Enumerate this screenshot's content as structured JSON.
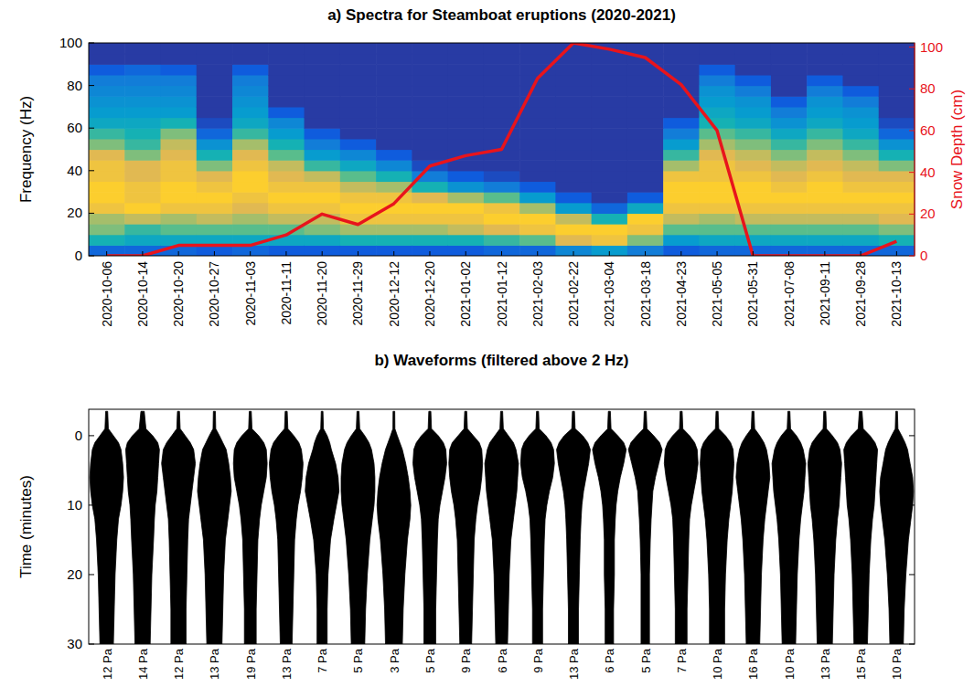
{
  "chart_data": [
    {
      "type": "heatmap",
      "title": "a) Spectra for Steamboat eruptions (2020-2021)",
      "categories": [
        "2020-10-06",
        "2020-10-14",
        "2020-10-20",
        "2020-10-27",
        "2020-11-03",
        "2020-11-11",
        "2020-11-20",
        "2020-11-29",
        "2020-12-12",
        "2020-12-20",
        "2021-01-02",
        "2021-01-12",
        "2021-02-03",
        "2021-02-22",
        "2021-03-04",
        "2021-03-18",
        "2021-04-23",
        "2021-05-05",
        "2021-05-31",
        "2021-07-08",
        "2021-09-11",
        "2021-09-28",
        "2021-10-13"
      ],
      "y_label": "Frequency (Hz)",
      "ylim": [
        0,
        100
      ],
      "yticks": [
        0,
        20,
        40,
        60,
        80,
        100
      ],
      "y_bins": [
        0,
        5,
        10,
        15,
        20,
        25,
        30,
        35,
        40,
        45,
        50,
        55,
        60,
        65,
        70,
        75,
        80,
        85,
        90,
        95,
        100
      ],
      "zlim": [
        0,
        1
      ],
      "cells": [
        [
          0.2,
          0.55,
          0.7,
          0.75,
          0.9,
          0.95,
          0.95,
          0.9,
          0.9,
          0.85,
          0.7,
          0.6,
          0.5,
          0.45,
          0.4,
          0.35,
          0.3,
          0.15,
          0.05,
          0.05
        ],
        [
          0.2,
          0.5,
          0.6,
          0.8,
          0.95,
          0.9,
          0.9,
          0.85,
          0.85,
          0.7,
          0.6,
          0.55,
          0.5,
          0.45,
          0.4,
          0.35,
          0.3,
          0.2,
          0.05,
          0.05
        ],
        [
          0.2,
          0.5,
          0.65,
          0.75,
          0.9,
          0.95,
          0.95,
          0.9,
          0.9,
          0.85,
          0.8,
          0.7,
          0.55,
          0.45,
          0.4,
          0.35,
          0.3,
          0.15,
          0.05,
          0.05
        ],
        [
          0.15,
          0.5,
          0.65,
          0.8,
          0.9,
          0.95,
          0.9,
          0.85,
          0.7,
          0.55,
          0.4,
          0.2,
          0.1,
          0.05,
          0.05,
          0.05,
          0.05,
          0.05,
          0.05,
          0.05
        ],
        [
          0.2,
          0.5,
          0.65,
          0.75,
          0.85,
          0.9,
          0.95,
          0.95,
          0.9,
          0.85,
          0.75,
          0.6,
          0.5,
          0.45,
          0.4,
          0.35,
          0.3,
          0.15,
          0.05,
          0.05
        ],
        [
          0.15,
          0.5,
          0.65,
          0.8,
          0.9,
          0.95,
          0.9,
          0.85,
          0.8,
          0.65,
          0.55,
          0.45,
          0.35,
          0.15,
          0.05,
          0.05,
          0.05,
          0.05,
          0.05,
          0.05
        ],
        [
          0.15,
          0.5,
          0.7,
          0.8,
          0.9,
          0.95,
          0.9,
          0.8,
          0.6,
          0.45,
          0.3,
          0.15,
          0.05,
          0.05,
          0.05,
          0.05,
          0.05,
          0.05,
          0.05,
          0.05
        ],
        [
          0.15,
          0.55,
          0.75,
          0.9,
          0.95,
          0.9,
          0.8,
          0.65,
          0.5,
          0.35,
          0.15,
          0.05,
          0.05,
          0.05,
          0.05,
          0.05,
          0.05,
          0.05,
          0.05,
          0.05
        ],
        [
          0.15,
          0.55,
          0.75,
          0.9,
          0.95,
          0.9,
          0.75,
          0.55,
          0.35,
          0.15,
          0.05,
          0.05,
          0.05,
          0.05,
          0.05,
          0.05,
          0.05,
          0.05,
          0.05,
          0.05
        ],
        [
          0.15,
          0.55,
          0.75,
          0.9,
          0.95,
          0.85,
          0.55,
          0.3,
          0.1,
          0.05,
          0.05,
          0.05,
          0.05,
          0.05,
          0.05,
          0.05,
          0.05,
          0.05,
          0.05,
          0.05
        ],
        [
          0.15,
          0.55,
          0.8,
          0.9,
          0.95,
          0.75,
          0.4,
          0.15,
          0.05,
          0.05,
          0.05,
          0.05,
          0.05,
          0.05,
          0.05,
          0.05,
          0.05,
          0.05,
          0.05,
          0.05
        ],
        [
          0.2,
          0.6,
          0.85,
          0.95,
          0.9,
          0.65,
          0.3,
          0.1,
          0.05,
          0.05,
          0.05,
          0.05,
          0.05,
          0.05,
          0.05,
          0.05,
          0.05,
          0.05,
          0.05,
          0.05
        ],
        [
          0.2,
          0.65,
          0.9,
          0.95,
          0.75,
          0.45,
          0.15,
          0.05,
          0.05,
          0.05,
          0.05,
          0.05,
          0.05,
          0.05,
          0.05,
          0.05,
          0.05,
          0.05,
          0.05,
          0.05
        ],
        [
          0.35,
          0.85,
          0.95,
          0.8,
          0.45,
          0.15,
          0.05,
          0.05,
          0.05,
          0.05,
          0.05,
          0.05,
          0.05,
          0.05,
          0.05,
          0.05,
          0.05,
          0.05,
          0.05,
          0.05
        ],
        [
          0.45,
          0.9,
          0.95,
          0.55,
          0.2,
          0.05,
          0.05,
          0.05,
          0.05,
          0.05,
          0.05,
          0.05,
          0.05,
          0.05,
          0.05,
          0.05,
          0.05,
          0.05,
          0.05,
          0.05
        ],
        [
          0.3,
          0.7,
          0.9,
          0.95,
          0.5,
          0.15,
          0.05,
          0.05,
          0.05,
          0.05,
          0.05,
          0.05,
          0.05,
          0.05,
          0.05,
          0.05,
          0.05,
          0.05,
          0.05,
          0.05
        ],
        [
          0.15,
          0.45,
          0.65,
          0.8,
          0.9,
          0.95,
          0.95,
          0.9,
          0.75,
          0.6,
          0.45,
          0.3,
          0.15,
          0.05,
          0.05,
          0.05,
          0.05,
          0.05,
          0.05,
          0.05
        ],
        [
          0.2,
          0.5,
          0.65,
          0.75,
          0.9,
          0.95,
          0.95,
          0.9,
          0.9,
          0.85,
          0.75,
          0.65,
          0.55,
          0.5,
          0.45,
          0.4,
          0.3,
          0.15,
          0.05,
          0.05
        ],
        [
          0.2,
          0.5,
          0.65,
          0.8,
          0.9,
          0.95,
          0.95,
          0.9,
          0.85,
          0.8,
          0.7,
          0.6,
          0.5,
          0.45,
          0.4,
          0.3,
          0.15,
          0.05,
          0.05,
          0.05
        ],
        [
          0.2,
          0.5,
          0.65,
          0.8,
          0.9,
          0.95,
          0.9,
          0.85,
          0.8,
          0.7,
          0.6,
          0.5,
          0.4,
          0.3,
          0.15,
          0.05,
          0.05,
          0.05,
          0.05,
          0.05
        ],
        [
          0.2,
          0.5,
          0.65,
          0.8,
          0.9,
          0.95,
          0.95,
          0.9,
          0.85,
          0.8,
          0.7,
          0.6,
          0.5,
          0.45,
          0.4,
          0.3,
          0.15,
          0.05,
          0.05,
          0.05
        ],
        [
          0.2,
          0.5,
          0.65,
          0.8,
          0.9,
          0.95,
          0.9,
          0.85,
          0.8,
          0.7,
          0.6,
          0.5,
          0.45,
          0.4,
          0.3,
          0.15,
          0.05,
          0.05,
          0.05,
          0.05
        ],
        [
          0.2,
          0.55,
          0.7,
          0.85,
          0.9,
          0.95,
          0.9,
          0.85,
          0.7,
          0.55,
          0.4,
          0.2,
          0.1,
          0.05,
          0.05,
          0.05,
          0.05,
          0.05,
          0.05,
          0.05
        ]
      ],
      "series": [
        {
          "type": "line",
          "color": "#e8141c",
          "axis": "y2",
          "values": [
            0,
            0,
            5,
            5,
            5,
            10,
            20,
            15,
            25,
            43,
            48,
            51,
            85,
            102,
            99,
            95,
            82,
            60,
            0,
            0,
            0,
            0,
            7
          ]
        }
      ],
      "y2_label": "Snow Depth (cm)",
      "y2lim": [
        0,
        102
      ],
      "y2ticks": [
        0,
        20,
        40,
        60,
        80,
        100
      ]
    },
    {
      "type": "waveform",
      "title": "b) Waveforms (filtered above 2 Hz)",
      "categories": [
        "12 Pa",
        "14 Pa",
        "12 Pa",
        "13 Pa",
        "19 Pa",
        "13 Pa",
        "7 Pa",
        "5 Pa",
        "3 Pa",
        "5 Pa",
        "9 Pa",
        "6 Pa",
        "9 Pa",
        "13 Pa",
        "6 Pa",
        "5 Pa",
        "7 Pa",
        "10 Pa",
        "16 Pa",
        "10 Pa",
        "13 Pa",
        "15 Pa",
        "10 Pa"
      ],
      "y_label": "Time (minutes)",
      "ylim": [
        30,
        -3.8
      ],
      "yticks": [
        0,
        10,
        20,
        30
      ],
      "times": [
        -3.5,
        -1,
        0,
        1,
        2,
        4,
        6,
        8,
        10,
        12,
        15,
        20,
        25,
        30
      ],
      "envelopes": [
        [
          0.06,
          0.1,
          0.4,
          0.7,
          0.85,
          0.95,
          1,
          0.95,
          0.85,
          0.7,
          0.6,
          0.5,
          0.45,
          0.4
        ],
        [
          0.1,
          0.2,
          0.6,
          0.9,
          1,
          0.95,
          0.9,
          0.85,
          0.75,
          0.7,
          0.65,
          0.55,
          0.5,
          0.45
        ],
        [
          0.06,
          0.1,
          0.4,
          0.7,
          0.9,
          1,
          0.9,
          0.8,
          0.7,
          0.6,
          0.55,
          0.5,
          0.45,
          0.45
        ],
        [
          0.06,
          0.08,
          0.3,
          0.5,
          0.7,
          0.85,
          0.95,
          1,
          0.9,
          0.8,
          0.65,
          0.55,
          0.5,
          0.45
        ],
        [
          0.06,
          0.1,
          0.5,
          0.8,
          0.95,
          1,
          0.95,
          0.8,
          0.65,
          0.55,
          0.45,
          0.4,
          0.35,
          0.35
        ],
        [
          0.06,
          0.1,
          0.45,
          0.75,
          0.9,
          1,
          0.95,
          0.85,
          0.7,
          0.6,
          0.5,
          0.45,
          0.4,
          0.35
        ],
        [
          0.05,
          0.08,
          0.3,
          0.45,
          0.55,
          0.8,
          0.95,
          1,
          0.85,
          0.7,
          0.5,
          0.35,
          0.3,
          0.3
        ],
        [
          0.06,
          0.1,
          0.4,
          0.65,
          0.8,
          0.95,
          1,
          1,
          0.95,
          0.85,
          0.7,
          0.55,
          0.45,
          0.4
        ],
        [
          0.05,
          0.06,
          0.2,
          0.35,
          0.5,
          0.7,
          0.85,
          0.95,
          1,
          0.95,
          0.8,
          0.65,
          0.55,
          0.5
        ],
        [
          0.06,
          0.1,
          0.5,
          0.8,
          0.95,
          1,
          0.9,
          0.75,
          0.6,
          0.5,
          0.45,
          0.4,
          0.35,
          0.35
        ],
        [
          0.06,
          0.1,
          0.45,
          0.8,
          0.95,
          1,
          0.95,
          0.85,
          0.7,
          0.6,
          0.5,
          0.45,
          0.4,
          0.35
        ],
        [
          0.06,
          0.1,
          0.4,
          0.7,
          0.85,
          1,
          0.95,
          0.9,
          0.8,
          0.7,
          0.55,
          0.45,
          0.4,
          0.35
        ],
        [
          0.06,
          0.1,
          0.5,
          0.8,
          0.95,
          1,
          0.9,
          0.7,
          0.55,
          0.45,
          0.4,
          0.35,
          0.3,
          0.3
        ],
        [
          0.06,
          0.1,
          0.55,
          0.85,
          1,
          0.9,
          0.75,
          0.6,
          0.5,
          0.45,
          0.4,
          0.35,
          0.3,
          0.3
        ],
        [
          0.06,
          0.1,
          0.5,
          0.85,
          1,
          0.85,
          0.65,
          0.5,
          0.4,
          0.35,
          0.3,
          0.3,
          0.25,
          0.25
        ],
        [
          0.06,
          0.1,
          0.5,
          0.85,
          1,
          0.8,
          0.6,
          0.45,
          0.4,
          0.35,
          0.3,
          0.25,
          0.25,
          0.25
        ],
        [
          0.06,
          0.1,
          0.5,
          0.8,
          0.95,
          1,
          0.9,
          0.75,
          0.6,
          0.5,
          0.45,
          0.4,
          0.35,
          0.35
        ],
        [
          0.06,
          0.1,
          0.5,
          0.8,
          0.95,
          1,
          0.95,
          0.9,
          0.8,
          0.7,
          0.6,
          0.5,
          0.45,
          0.45
        ],
        [
          0.06,
          0.1,
          0.4,
          0.65,
          0.8,
          0.95,
          1,
          0.9,
          0.8,
          0.7,
          0.6,
          0.5,
          0.45,
          0.4
        ],
        [
          0.06,
          0.1,
          0.45,
          0.7,
          0.85,
          1,
          0.95,
          0.9,
          0.8,
          0.7,
          0.6,
          0.5,
          0.45,
          0.4
        ],
        [
          0.06,
          0.1,
          0.45,
          0.75,
          0.9,
          1,
          0.95,
          0.9,
          0.85,
          0.75,
          0.65,
          0.55,
          0.5,
          0.45
        ],
        [
          0.08,
          0.15,
          0.55,
          0.85,
          1,
          0.95,
          0.9,
          0.85,
          0.8,
          0.7,
          0.6,
          0.5,
          0.45,
          0.4
        ],
        [
          0.05,
          0.08,
          0.3,
          0.5,
          0.65,
          0.8,
          0.95,
          1,
          0.95,
          0.85,
          0.7,
          0.55,
          0.45,
          0.4
        ]
      ]
    }
  ]
}
